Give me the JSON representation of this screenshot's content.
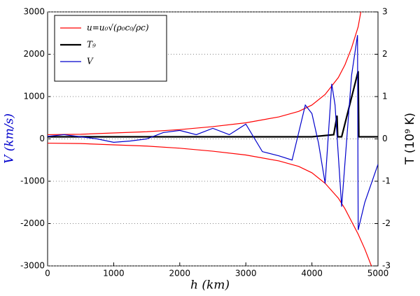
{
  "chart_data": {
    "type": "line",
    "xlabel": "h (km)",
    "ylabel": "V (km/s)",
    "y2label": "T (10⁹ K)",
    "xlim": [
      0,
      5000
    ],
    "xticks": [
      0,
      1000,
      2000,
      3000,
      4000,
      5000
    ],
    "ylim": [
      -3000,
      3000
    ],
    "yticks": [
      -3000,
      -2000,
      -1000,
      0,
      1000,
      2000,
      3000
    ],
    "y2lim": [
      -3,
      3
    ],
    "y2ticks": [
      -3,
      -2,
      -1,
      0,
      1,
      2,
      3
    ],
    "grid": true,
    "legend": "upper left",
    "series": [
      {
        "name": "u=u₀√(ρ₀c₀/ρc)",
        "color": "#ff0000",
        "x": [
          0,
          500,
          1000,
          1500,
          2000,
          2500,
          3000,
          3500,
          3800,
          4000,
          4200,
          4400,
          4500,
          4600,
          4700,
          4740
        ],
        "values": [
          100,
          110,
          140,
          170,
          220,
          290,
          380,
          520,
          650,
          800,
          1050,
          1450,
          1750,
          2150,
          2650,
          3000
        ]
      },
      {
        "color": "#ff0000",
        "x": [
          0,
          500,
          1000,
          1500,
          2000,
          2500,
          3000,
          3500,
          3800,
          4000,
          4200,
          4400,
          4500,
          4600,
          4700,
          4800,
          4900
        ],
        "values": [
          -100,
          -110,
          -140,
          -170,
          -220,
          -290,
          -380,
          -520,
          -650,
          -800,
          -1050,
          -1400,
          -1650,
          -1950,
          -2250,
          -2600,
          -3000
        ]
      },
      {
        "name": "T₉",
        "color": "#000000",
        "axis": "y2",
        "x": [
          0,
          4000,
          4330,
          4380,
          4390,
          4450,
          4700,
          4710,
          5000
        ],
        "values": [
          0.05,
          0.05,
          0.1,
          0.55,
          0.05,
          0.05,
          1.6,
          0.05,
          0.05
        ]
      },
      {
        "name": "V",
        "color": "#0000cc",
        "x": [
          0,
          250,
          500,
          750,
          1000,
          1250,
          1500,
          1750,
          2000,
          2250,
          2500,
          2750,
          3000,
          3250,
          3500,
          3700,
          3900,
          4000,
          4100,
          4200,
          4300,
          4350,
          4450,
          4600,
          4690,
          4700,
          4800,
          5000
        ],
        "values": [
          60,
          100,
          50,
          0,
          -80,
          -50,
          0,
          150,
          200,
          100,
          250,
          100,
          350,
          -300,
          -400,
          -500,
          800,
          600,
          -100,
          -1050,
          1300,
          800,
          -1600,
          1500,
          2450,
          -2150,
          -1500,
          -600
        ]
      }
    ]
  }
}
